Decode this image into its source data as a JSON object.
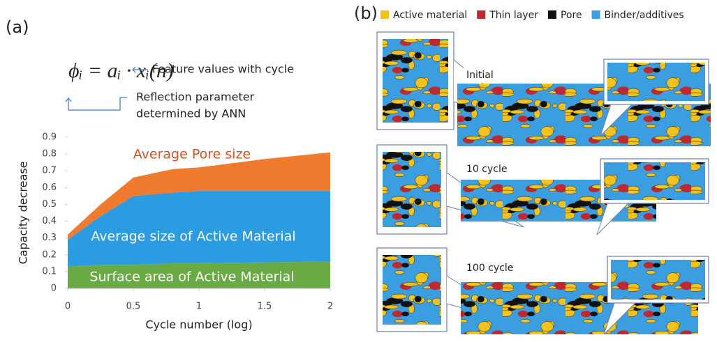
{
  "chart_data": {
    "type": "stacked-area",
    "x": [
      0,
      0.25,
      0.5,
      0.8,
      1,
      1.5,
      2
    ],
    "series": [
      {
        "name": "Surface area of Active Material",
        "color": "#6aaa45",
        "values": [
          0.13,
          0.14,
          0.14,
          0.15,
          0.15,
          0.155,
          0.16
        ]
      },
      {
        "name": "Average size of Active Material",
        "color": "#2b9be2",
        "values": [
          0.16,
          0.29,
          0.41,
          0.42,
          0.43,
          0.425,
          0.42
        ]
      },
      {
        "name": "Average Pore size",
        "color": "#f07a2e",
        "values": [
          0.03,
          0.07,
          0.11,
          0.14,
          0.14,
          0.19,
          0.23
        ]
      }
    ],
    "xlabel": "Cycle number (log)",
    "ylabel": "Capacity decrease",
    "xlim": [
      0,
      2
    ],
    "xticks": [
      0,
      0.5,
      1,
      1.5,
      2
    ],
    "ylim": [
      0,
      0.9
    ],
    "yticks": [
      0,
      0.1,
      0.2,
      0.3,
      0.4,
      0.5,
      0.6,
      0.7,
      0.8,
      0.9
    ]
  },
  "panel_a": {
    "label": "(a)",
    "formula": "ϕᵢ = aᵢ · xᵢ(n)",
    "annotations": [
      "Feature values with cycle",
      "Reflection parameter",
      "determined  by ANN"
    ]
  },
  "panel_b": {
    "label": "(b)",
    "legend": [
      {
        "name": "Active material",
        "color": "#f5c21b"
      },
      {
        "name": "Thin layer",
        "color": "#c0282d"
      },
      {
        "name": "Pore",
        "color": "#111111"
      },
      {
        "name": "Binder/additives",
        "color": "#3b9ee0"
      }
    ],
    "stages": [
      "Initial",
      "10 cycle",
      "100 cycle"
    ]
  }
}
